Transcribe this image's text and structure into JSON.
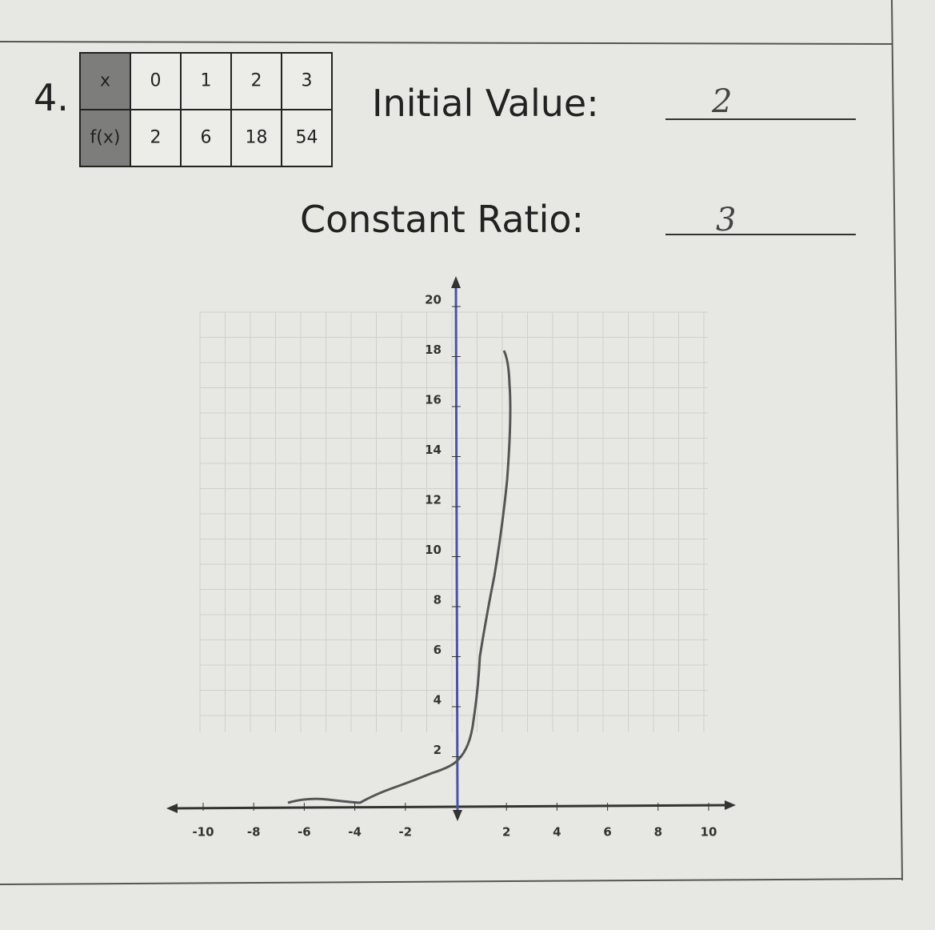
{
  "problem_number": "4.",
  "table": {
    "rows": [
      [
        "x",
        0,
        1,
        2,
        3
      ],
      [
        "f(x)",
        2,
        6,
        18,
        54
      ]
    ]
  },
  "questions": [
    {
      "label": "Initial Value:",
      "answer": 2
    },
    {
      "label": "Constant Ratio:",
      "answer": 3
    }
  ],
  "graph": {
    "xticks": [
      -10,
      -8,
      -6,
      -4,
      -2,
      2,
      4,
      6,
      8,
      10
    ],
    "yticks": [
      2,
      4,
      6,
      8,
      10,
      12,
      14,
      16,
      18,
      20
    ]
  }
}
